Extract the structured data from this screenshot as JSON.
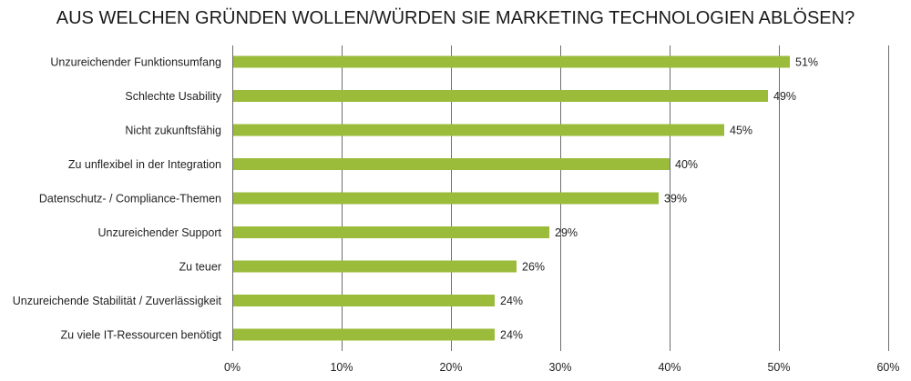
{
  "chart_data": {
    "type": "bar",
    "orientation": "horizontal",
    "title": "AUS WELCHEN GRÜNDEN WOLLEN/WÜRDEN SIE MARKETING TECHNOLOGIEN ABLÖSEN?",
    "xlabel": "",
    "ylabel": "",
    "categories": [
      "Unzureichender Funktionsumfang",
      "Schlechte Usability",
      "Nicht zukunftsfähig",
      "Zu unflexibel in der Integration",
      "Datenschutz- / Compliance-Themen",
      "Unzureichender Support",
      "Zu teuer",
      "Unzureichende Stabilität / Zuverlässigkeit",
      "Zu viele IT-Ressourcen benötigt"
    ],
    "values": [
      51,
      49,
      45,
      40,
      39,
      29,
      26,
      24,
      24
    ],
    "value_labels": [
      "51%",
      "49%",
      "45%",
      "40%",
      "39%",
      "29%",
      "26%",
      "24%",
      "24%"
    ],
    "xlim": [
      0,
      60
    ],
    "x_ticks": [
      0,
      10,
      20,
      30,
      40,
      50,
      60
    ],
    "x_tick_labels": [
      "0%",
      "10%",
      "20%",
      "30%",
      "40%",
      "50%",
      "60%"
    ],
    "grid": true,
    "legend": "none",
    "bar_color": "#9bbb3b",
    "grid_color": "#6e6e6e"
  }
}
